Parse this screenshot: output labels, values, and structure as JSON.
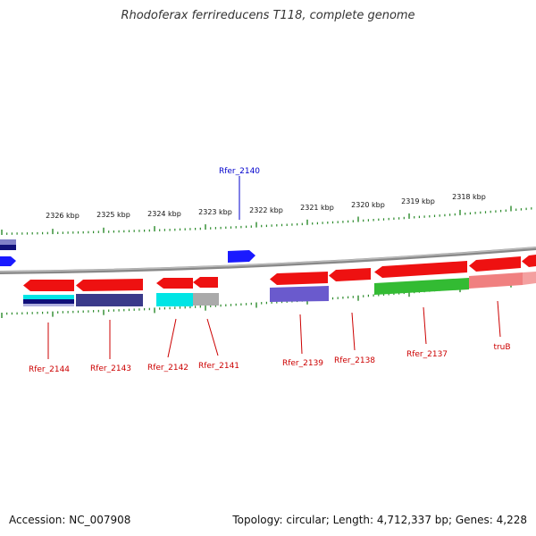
{
  "title": "Rhodoferax ferrireducens T118, complete genome",
  "footer": {
    "accession": "Accession: NC_007908",
    "summary": "Topology: circular; Length: 4,712,337 bp; Genes: 4,228"
  },
  "scale_labels": [
    "2326 kbp",
    "2325 kbp",
    "2324 kbp",
    "2323 kbp",
    "2322 kbp",
    "2321 kbp",
    "2320 kbp",
    "2319 kbp",
    "2318 kbp"
  ],
  "gene_labels": {
    "top": [
      "Rfer_2140"
    ],
    "bottom": [
      "Rfer_2144",
      "Rfer_2143",
      "Rfer_2142",
      "Rfer_2141",
      "Rfer_2139",
      "Rfer_2138",
      "Rfer_2137",
      "truB"
    ]
  },
  "colors": {
    "backbone": "#888888",
    "tick": "#2a8a2a",
    "gene_forward": "#1a1aff",
    "gene_reverse": "#ee1111",
    "label_reverse": "#cc0000",
    "label_forward": "#0000cc",
    "cds_cyan": "#00e5e5",
    "cds_navy": "#3a3a8a",
    "cds_purple": "#6a5acd",
    "cds_green": "#33bb33",
    "cds_pink": "#f08080",
    "cds_grey": "#aaaaaa"
  }
}
